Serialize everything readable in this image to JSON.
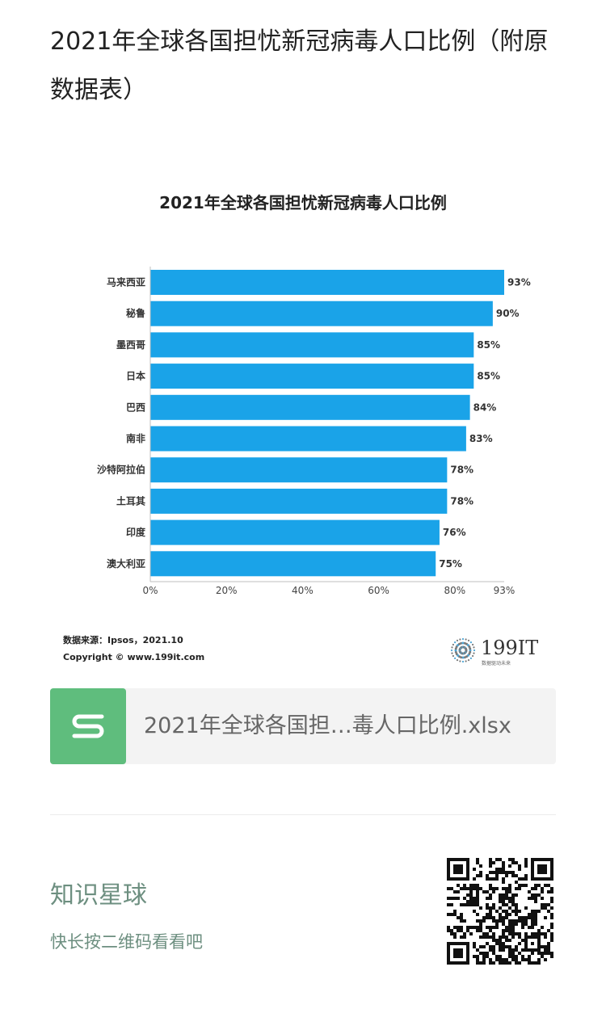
{
  "post": {
    "title": "2021年全球各国担忧新冠病毒人口比例（附原数据表）"
  },
  "chart_data": {
    "type": "bar",
    "orientation": "horizontal",
    "title": "2021年全球各国担忧新冠病毒人口比例",
    "categories": [
      "马来西亚",
      "秘鲁",
      "墨西哥",
      "日本",
      "巴西",
      "南非",
      "沙特阿拉伯",
      "土耳其",
      "印度",
      "澳大利亚"
    ],
    "values": [
      93,
      90,
      85,
      85,
      84,
      83,
      78,
      78,
      76,
      75
    ],
    "value_labels": [
      "93%",
      "90%",
      "85%",
      "85%",
      "84%",
      "83%",
      "78%",
      "78%",
      "76%",
      "75%"
    ],
    "xlim": [
      0,
      93
    ],
    "x_ticks": [
      0,
      20,
      40,
      60,
      80,
      93
    ],
    "x_tick_labels": [
      "0%",
      "20%",
      "40%",
      "60%",
      "80%",
      "93%"
    ],
    "bar_color": "#1aa3e8",
    "grid": false,
    "source_label": "数据来源：Ipsos，2021.10",
    "copyright_label": "Copyright © www.199it.com",
    "logo_text": "199IT",
    "logo_tagline": "数据驱动未来"
  },
  "attachment": {
    "file_name": "2021年全球各国担…毒人口比例.xlsx",
    "icon": "spreadsheet-s-icon",
    "icon_color": "#5fbd7d"
  },
  "footer": {
    "title": "知识星球",
    "subtitle": "快长按二维码看看吧",
    "accent_color": "#6d8f80"
  }
}
